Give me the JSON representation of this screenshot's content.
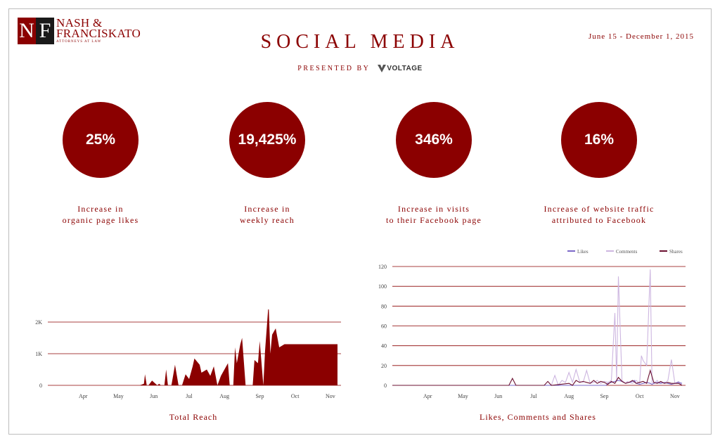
{
  "header": {
    "logo_initials": [
      "N",
      "F"
    ],
    "logo_name_line1": "NASH &",
    "logo_name_line2": "FRANCISKATO",
    "logo_sub": "ATTORNEYS AT LAW",
    "title": "SOCIAL MEDIA",
    "presented_by": "PRESENTED BY",
    "sponsor": "VOLTAGE",
    "date_range": "June 15 - December 1, 2015"
  },
  "stats": [
    {
      "value": "25%",
      "label": "Increase in\norganic page likes"
    },
    {
      "value": "19,425%",
      "label": "Increase in\nweekly reach"
    },
    {
      "value": "346%",
      "label": "Increase in  visits\nto their Facebook page"
    },
    {
      "value": "16%",
      "label": "Increase of website traffic\nattributed to Facebook"
    }
  ],
  "colors": {
    "accent": "#8b0000",
    "likes": "#7b68c8",
    "comments": "#cdb6e0",
    "shares": "#6b1030"
  },
  "chart_data": [
    {
      "type": "area",
      "title": "Total Reach",
      "xlabel": "",
      "ylabel": "",
      "x_ticks": [
        "Apr",
        "May",
        "Jun",
        "Jul",
        "Aug",
        "Sep",
        "Oct",
        "Nov"
      ],
      "y_ticks": [
        "0",
        "1K",
        "2K"
      ],
      "ylim": [
        0,
        2000
      ],
      "xlim": [
        0,
        8.3
      ],
      "x": [
        0,
        2.6,
        2.72,
        2.75,
        2.8,
        2.85,
        2.95,
        3.0,
        3.1,
        3.15,
        3.2,
        3.25,
        3.3,
        3.35,
        3.4,
        3.5,
        3.6,
        3.7,
        3.75,
        3.8,
        3.9,
        4.0,
        4.1,
        4.15,
        4.3,
        4.35,
        4.5,
        4.6,
        4.7,
        4.8,
        4.9,
        5.0,
        5.1,
        5.15,
        5.2,
        5.25,
        5.3,
        5.35,
        5.45,
        5.5,
        5.6,
        5.7,
        5.8,
        5.85,
        5.95,
        6.0,
        6.1,
        6.15,
        6.25,
        6.3,
        6.35,
        6.45,
        6.55,
        6.7,
        6.8,
        6.9,
        6.95,
        7.05,
        7.15,
        7.25,
        7.3,
        7.45,
        7.55,
        7.65,
        7.8,
        7.9,
        7.95,
        8.0,
        8.1,
        8.2
      ],
      "values": [
        0,
        0,
        50,
        350,
        0,
        0,
        150,
        100,
        0,
        50,
        0,
        0,
        0,
        500,
        0,
        0,
        650,
        0,
        0,
        0,
        350,
        200,
        600,
        850,
        650,
        400,
        500,
        300,
        600,
        0,
        300,
        500,
        700,
        0,
        0,
        0,
        1200,
        700,
        1300,
        1500,
        0,
        0,
        0,
        800,
        700,
        1400,
        0,
        1100,
        2600,
        1000,
        1600,
        1800,
        1200,
        1300,
        1300,
        1300,
        1300,
        1300,
        1300,
        1300,
        1300,
        1300,
        1300,
        1300,
        1300,
        1300,
        1300,
        1300,
        1300,
        1300
      ]
    },
    {
      "type": "line",
      "title": "Likes, Comments and Shares",
      "x_ticks": [
        "Apr",
        "May",
        "Jun",
        "Jul",
        "Aug",
        "Sep",
        "Oct",
        "Nov"
      ],
      "y_ticks": [
        "0",
        "20",
        "40",
        "60",
        "80",
        "100",
        "120"
      ],
      "ylim": [
        0,
        120
      ],
      "xlim": [
        0,
        8.3
      ],
      "legend": "top-right",
      "series": [
        {
          "name": "Likes",
          "x": [
            0,
            3.3,
            3.35,
            3.45,
            3.5,
            4.6,
            4.7,
            4.8,
            4.9,
            5.0,
            5.1,
            5.2,
            5.3,
            5.4,
            5.5,
            5.6,
            5.7,
            5.8,
            5.9,
            6.0,
            6.05,
            6.1,
            6.2,
            6.3,
            6.4,
            6.5,
            6.55,
            6.6,
            6.7,
            6.8,
            6.85,
            6.9,
            7.0,
            7.1,
            7.2,
            7.3,
            7.35,
            7.4,
            7.5,
            7.6,
            7.7,
            7.8,
            7.9,
            8.0,
            8.1,
            8.2
          ],
          "values": [
            0,
            0,
            0,
            0,
            0,
            0,
            0,
            0,
            0,
            0,
            0,
            0,
            0,
            0,
            0,
            0,
            0,
            0,
            0,
            0,
            0,
            2,
            3,
            4,
            5,
            4,
            3,
            2,
            3,
            4,
            5,
            2,
            1,
            2,
            3,
            2,
            1,
            2,
            3,
            2,
            3,
            2,
            1,
            2,
            3,
            2
          ]
        },
        {
          "name": "Comments",
          "x": [
            0,
            4.5,
            4.6,
            4.7,
            4.8,
            4.9,
            5.0,
            5.1,
            5.2,
            5.3,
            5.4,
            5.5,
            5.6,
            5.7,
            5.8,
            5.9,
            6.0,
            6.1,
            6.2,
            6.3,
            6.35,
            6.4,
            6.5,
            6.6,
            6.65,
            6.7,
            6.8,
            6.9,
            7.0,
            7.05,
            7.1,
            7.2,
            7.3,
            7.35,
            7.4,
            7.5,
            7.55,
            7.6,
            7.7,
            7.8,
            7.9,
            8.0,
            8.1,
            8.2
          ],
          "values": [
            0,
            0,
            10,
            0,
            5,
            3,
            13,
            3,
            16,
            4,
            3,
            15,
            2,
            3,
            5,
            2,
            4,
            3,
            5,
            73,
            5,
            110,
            5,
            2,
            4,
            3,
            2,
            5,
            2,
            30,
            25,
            20,
            117,
            3,
            2,
            5,
            2,
            3,
            2,
            5,
            26,
            2,
            4,
            0
          ]
        },
        {
          "name": "Shares",
          "x": [
            0,
            3.3,
            3.4,
            3.5,
            4.3,
            4.4,
            4.5,
            5.0,
            5.1,
            5.2,
            5.3,
            5.4,
            5.5,
            5.6,
            5.7,
            5.8,
            5.9,
            6.0,
            6.1,
            6.2,
            6.3,
            6.4,
            6.5,
            6.6,
            6.7,
            6.8,
            6.9,
            7.0,
            7.1,
            7.2,
            7.3,
            7.4,
            7.5,
            7.6,
            7.7,
            7.8,
            7.9,
            8.0,
            8.1,
            8.2
          ],
          "values": [
            0,
            0,
            7,
            0,
            0,
            4,
            0,
            2,
            0,
            5,
            3,
            4,
            3,
            2,
            5,
            2,
            4,
            3,
            1,
            4,
            2,
            8,
            4,
            2,
            3,
            5,
            2,
            3,
            4,
            2,
            15,
            3,
            2,
            4,
            2,
            3,
            2,
            2,
            2,
            0
          ]
        }
      ]
    }
  ]
}
